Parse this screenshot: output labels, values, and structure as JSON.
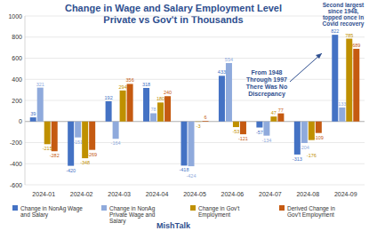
{
  "chart_data": {
    "type": "bar",
    "title": "Change in Wage and Salary Employment Level",
    "subtitle": "Private vs Gov't in Thousands",
    "categories": [
      "2024-01",
      "2024-02",
      "2024-03",
      "2024-04",
      "2024-05",
      "2024-06",
      "2024-07",
      "2024-08",
      "2024-09"
    ],
    "series": [
      {
        "name": "Change in NonAg Wage and Salary",
        "color": "#4472c4",
        "values": [
          39,
          -420,
          192,
          318,
          -418,
          433,
          -57,
          -313,
          822
        ]
      },
      {
        "name": "Change in NonAg Private Wage and Salary",
        "color": "#8faadc",
        "values": [
          321,
          -151,
          -164,
          78,
          -424,
          554,
          -134,
          -204,
          133
        ]
      },
      {
        "name": "Change in Gov't Employment",
        "color": "#bf9000",
        "values": [
          -215,
          -348,
          294,
          180,
          -3,
          -53,
          47,
          -176,
          785
        ]
      },
      {
        "name": "Derived Change in Gov't Employment",
        "color": "#c55a11",
        "values": [
          -282,
          -269,
          356,
          240,
          6,
          -121,
          77,
          -109,
          689
        ]
      }
    ],
    "ylim": [
      -600,
      1000
    ],
    "yticks": [
      -600,
      -400,
      -200,
      0,
      200,
      400,
      600,
      800,
      1000
    ],
    "grid": true,
    "data_labels": true,
    "legend": "bottom",
    "annotations": [
      "From 1948 Through 1997 There Was No Discrepancy",
      "Second largest since 1948, topped once in Covid recovery"
    ],
    "footer": "MishTalk"
  }
}
